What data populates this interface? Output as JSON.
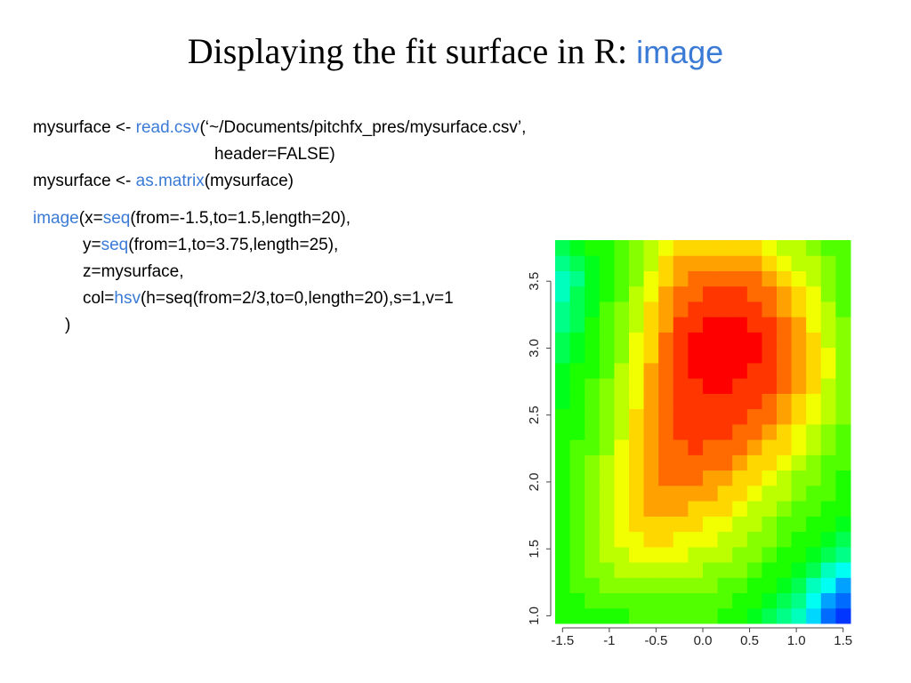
{
  "title": {
    "text": "Displaying the fit surface in R:",
    "highlight": "image"
  },
  "code": [
    [
      {
        "text": "mysurface <- "
      },
      {
        "text": "read.csv",
        "fn": true
      },
      {
        "text": "(‘~/Documents/pitchfx_pres/mysurface.csv’,"
      }
    ],
    [
      {
        "text": "header=FALSE)"
      }
    ],
    [
      {
        "text": "mysurface <- "
      },
      {
        "text": "as.matrix",
        "fn": true
      },
      {
        "text": "(mysurface)"
      }
    ],
    [
      {
        "text": "image",
        "fn": true
      },
      {
        "text": "(x="
      },
      {
        "text": "seq",
        "fn": true
      },
      {
        "text": "(from=-1.5,to=1.5,length=20),"
      }
    ],
    [
      {
        "text": "y="
      },
      {
        "text": "seq",
        "fn": true
      },
      {
        "text": "(from=1,to=3.75,length=25),"
      }
    ],
    [
      {
        "text": "z=mysurface,"
      }
    ],
    [
      {
        "text": "col="
      },
      {
        "text": "hsv",
        "fn": true
      },
      {
        "text": "(h=seq(from=2/3,to=0,length=20),s=1,v=1"
      }
    ],
    [
      {
        "text": ")"
      }
    ]
  ],
  "chart_data": {
    "type": "heatmap",
    "x": [
      -1.5,
      -1.342,
      -1.184,
      -1.026,
      -0.868,
      -0.711,
      -0.553,
      -0.395,
      -0.237,
      -0.079,
      0.079,
      0.237,
      0.395,
      0.553,
      0.711,
      0.868,
      1.026,
      1.184,
      1.342,
      1.5
    ],
    "y": [
      1,
      1.115,
      1.229,
      1.344,
      1.458,
      1.573,
      1.687,
      1.802,
      1.917,
      2.031,
      2.146,
      2.26,
      2.375,
      2.49,
      2.604,
      2.719,
      2.833,
      2.948,
      3.063,
      3.177,
      3.292,
      3.406,
      3.521,
      3.635,
      3.75
    ],
    "levels": 20,
    "z": [
      [
        10,
        10,
        10,
        10,
        10,
        11,
        11,
        11,
        11,
        11,
        11,
        10,
        10,
        9,
        8,
        7,
        6,
        4,
        2,
        1
      ],
      [
        10,
        10,
        11,
        11,
        11,
        11,
        11,
        11,
        11,
        11,
        11,
        11,
        10,
        10,
        9,
        8,
        7,
        5,
        3,
        2
      ],
      [
        10,
        11,
        11,
        12,
        12,
        12,
        12,
        12,
        12,
        12,
        12,
        11,
        11,
        10,
        10,
        9,
        8,
        6,
        5,
        3
      ],
      [
        10,
        11,
        12,
        12,
        13,
        13,
        13,
        13,
        13,
        13,
        12,
        12,
        12,
        11,
        10,
        10,
        9,
        8,
        6,
        5
      ],
      [
        10,
        11,
        12,
        13,
        13,
        14,
        14,
        14,
        14,
        13,
        13,
        13,
        12,
        12,
        11,
        10,
        10,
        9,
        8,
        7
      ],
      [
        10,
        11,
        12,
        13,
        14,
        14,
        15,
        15,
        14,
        14,
        14,
        13,
        13,
        12,
        12,
        11,
        10,
        10,
        9,
        8
      ],
      [
        10,
        11,
        12,
        13,
        14,
        15,
        15,
        15,
        15,
        15,
        14,
        14,
        13,
        13,
        12,
        11,
        11,
        10,
        10,
        9
      ],
      [
        10,
        11,
        12,
        13,
        14,
        15,
        16,
        16,
        16,
        15,
        15,
        15,
        14,
        13,
        13,
        12,
        11,
        11,
        10,
        10
      ],
      [
        10,
        11,
        12,
        13,
        14,
        15,
        16,
        16,
        16,
        16,
        16,
        15,
        15,
        14,
        13,
        13,
        12,
        11,
        11,
        10
      ],
      [
        10,
        11,
        12,
        13,
        14,
        15,
        16,
        17,
        17,
        17,
        16,
        16,
        15,
        15,
        14,
        13,
        12,
        12,
        11,
        10
      ],
      [
        10,
        11,
        12,
        13,
        14,
        15,
        16,
        17,
        17,
        17,
        17,
        17,
        16,
        15,
        15,
        14,
        13,
        12,
        11,
        11
      ],
      [
        10,
        11,
        11,
        12,
        14,
        15,
        16,
        17,
        17,
        18,
        17,
        17,
        17,
        16,
        15,
        15,
        14,
        13,
        12,
        11
      ],
      [
        10,
        10,
        11,
        12,
        13,
        15,
        16,
        17,
        18,
        18,
        18,
        18,
        17,
        17,
        16,
        15,
        14,
        13,
        12,
        11
      ],
      [
        10,
        10,
        11,
        12,
        13,
        15,
        16,
        17,
        18,
        18,
        18,
        18,
        18,
        17,
        17,
        16,
        15,
        14,
        13,
        12
      ],
      [
        9,
        10,
        11,
        12,
        13,
        14,
        16,
        17,
        18,
        18,
        18,
        18,
        18,
        18,
        17,
        16,
        15,
        14,
        13,
        12
      ],
      [
        9,
        10,
        11,
        12,
        13,
        14,
        16,
        17,
        18,
        18,
        19,
        19,
        18,
        18,
        18,
        17,
        16,
        15,
        13,
        12
      ],
      [
        9,
        10,
        10,
        11,
        13,
        14,
        16,
        17,
        18,
        19,
        19,
        19,
        19,
        18,
        18,
        17,
        16,
        15,
        14,
        12
      ],
      [
        8,
        9,
        10,
        11,
        12,
        14,
        15,
        17,
        18,
        19,
        19,
        19,
        19,
        19,
        18,
        17,
        16,
        15,
        14,
        12
      ],
      [
        8,
        9,
        10,
        11,
        12,
        14,
        15,
        17,
        18,
        19,
        19,
        19,
        19,
        19,
        18,
        17,
        16,
        15,
        13,
        12
      ],
      [
        7,
        8,
        10,
        11,
        12,
        13,
        15,
        16,
        18,
        18,
        19,
        19,
        19,
        18,
        18,
        17,
        16,
        14,
        13,
        12
      ],
      [
        7,
        8,
        9,
        11,
        12,
        13,
        15,
        16,
        17,
        18,
        18,
        18,
        18,
        18,
        17,
        16,
        15,
        14,
        13,
        11
      ],
      [
        6,
        8,
        9,
        10,
        11,
        13,
        14,
        16,
        17,
        17,
        18,
        18,
        18,
        17,
        17,
        16,
        15,
        14,
        12,
        11
      ],
      [
        6,
        7,
        9,
        10,
        11,
        12,
        14,
        15,
        16,
        17,
        17,
        17,
        17,
        17,
        16,
        15,
        14,
        13,
        12,
        11
      ],
      [
        7,
        8,
        9,
        10,
        11,
        12,
        13,
        15,
        16,
        16,
        16,
        16,
        16,
        16,
        15,
        14,
        13,
        13,
        12,
        11
      ],
      [
        8,
        9,
        10,
        10,
        11,
        12,
        13,
        14,
        15,
        15,
        15,
        15,
        15,
        15,
        14,
        13,
        13,
        12,
        11,
        11
      ]
    ],
    "xlim": [
      -1.579,
      1.579
    ],
    "ylim": [
      0.943,
      3.807
    ],
    "xticks": [
      -1.5,
      -1.0,
      -0.5,
      {
        "value": 0,
        "label": "0.0"
      },
      0.5,
      {
        "value": 1,
        "label": "1.0"
      },
      1.5
    ],
    "yticks": [
      {
        "value": 1,
        "label": "1.0"
      },
      1.5,
      {
        "value": 2,
        "label": "2.0"
      },
      2.5,
      {
        "value": 3,
        "label": "3.0"
      },
      3.5
    ]
  }
}
